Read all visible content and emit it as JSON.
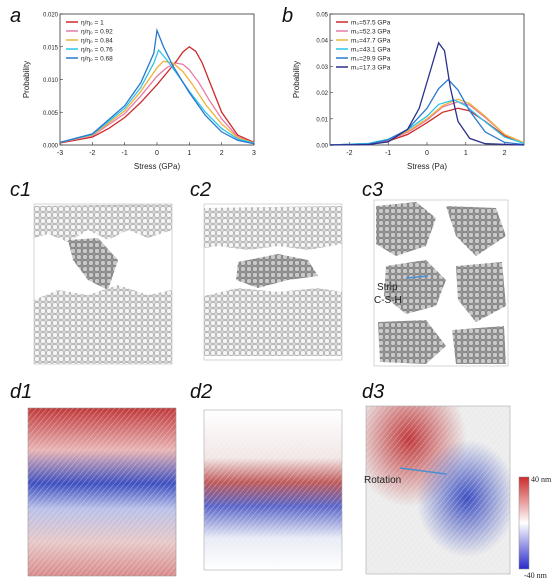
{
  "panels": {
    "a": "a",
    "b": "b",
    "c1": "c1",
    "c2": "c2",
    "c3": "c3",
    "d1": "d1",
    "d2": "d2",
    "d3": "d3"
  },
  "annotations": {
    "strip_line1": "Strip",
    "strip_line2": "C-S-H",
    "rotation": "Rotation"
  },
  "colorbar": {
    "max": "40 nm",
    "min": "-40 nm"
  },
  "colors": {
    "c1": "#cc2a2a",
    "c2": "#e97aa8",
    "c3": "#f0b23a",
    "c4": "#2ec4e8",
    "c5": "#2a78d0",
    "c6": "#2a2f8c"
  },
  "chart_data": [
    {
      "type": "line",
      "xlabel": "Stress (GPa)",
      "ylabel": "Probability",
      "xlim": [
        -3,
        3
      ],
      "ylim": [
        0,
        0.02
      ],
      "xticks": [
        "-3",
        "-2",
        "-1",
        "0",
        "1",
        "2",
        "3"
      ],
      "yticks": [
        "0.000",
        "0.005",
        "0.010",
        "0.015",
        "0.020"
      ],
      "legend_position": "top-left",
      "series": [
        {
          "name": "η/η₀ = 1",
          "color": "#cc2a2a",
          "x": [
            -3,
            -2,
            -1.5,
            -1,
            -0.5,
            0,
            0.3,
            0.6,
            0.8,
            1.0,
            1.2,
            1.4,
            1.6,
            2,
            2.5,
            3
          ],
          "y": [
            0.0003,
            0.0012,
            0.0025,
            0.0042,
            0.0065,
            0.0092,
            0.011,
            0.0128,
            0.0142,
            0.015,
            0.0143,
            0.0125,
            0.01,
            0.005,
            0.0015,
            0.0004
          ]
        },
        {
          "name": "η/η₀ = 0.92",
          "color": "#e97aa8",
          "x": [
            -3,
            -2,
            -1,
            -0.5,
            0,
            0.3,
            0.6,
            0.8,
            1.0,
            1.3,
            1.6,
            2,
            2.5,
            3
          ],
          "y": [
            0.0004,
            0.0014,
            0.0048,
            0.0075,
            0.0105,
            0.0118,
            0.0125,
            0.0123,
            0.0115,
            0.0095,
            0.007,
            0.004,
            0.0012,
            0.0003
          ]
        },
        {
          "name": "η/η₀ = 0.84",
          "color": "#f0b23a",
          "x": [
            -3,
            -2,
            -1,
            -0.5,
            0,
            0.2,
            0.5,
            0.8,
            1.1,
            1.5,
            2,
            2.5,
            3
          ],
          "y": [
            0.0004,
            0.0015,
            0.0052,
            0.0082,
            0.0118,
            0.0128,
            0.0125,
            0.0112,
            0.0092,
            0.0062,
            0.0032,
            0.0011,
            0.0003
          ]
        },
        {
          "name": "η/η₀ = 0.76",
          "color": "#2ec4e8",
          "x": [
            -3,
            -2,
            -1,
            -0.5,
            -0.1,
            0.05,
            0.3,
            0.6,
            1.0,
            1.5,
            2,
            2.5,
            3
          ],
          "y": [
            0.0004,
            0.0016,
            0.0056,
            0.0088,
            0.0125,
            0.0145,
            0.013,
            0.011,
            0.0082,
            0.005,
            0.0025,
            0.0009,
            0.0003
          ]
        },
        {
          "name": "η/η₀ = 0.68",
          "color": "#2a78d0",
          "x": [
            -3,
            -2,
            -1,
            -0.5,
            -0.1,
            0.0,
            0.2,
            0.5,
            1.0,
            1.5,
            2,
            2.5,
            3
          ],
          "y": [
            0.0004,
            0.0017,
            0.006,
            0.0095,
            0.014,
            0.0175,
            0.015,
            0.012,
            0.008,
            0.0045,
            0.002,
            0.0007,
            0.0002
          ]
        }
      ]
    },
    {
      "type": "line",
      "xlabel": "Stress (Pa)",
      "ylabel": "Probability",
      "xlim": [
        -2.5,
        2.5
      ],
      "ylim": [
        0,
        0.05
      ],
      "xticks": [
        "-2",
        "-1",
        "0",
        "1",
        "2"
      ],
      "yticks": [
        "0.00",
        "0.01",
        "0.02",
        "0.03",
        "0.04",
        "0.05"
      ],
      "legend_position": "top-left",
      "series": [
        {
          "name": "m₀=57.5 GPa",
          "color": "#cc2a2a",
          "x": [
            -2.5,
            -1.5,
            -1,
            -0.5,
            0,
            0.4,
            0.8,
            1.1,
            1.5,
            2,
            2.5
          ],
          "y": [
            0,
            0.0005,
            0.0015,
            0.004,
            0.0085,
            0.0125,
            0.014,
            0.013,
            0.009,
            0.0035,
            0.0008
          ]
        },
        {
          "name": "m₀=52.3 GPa",
          "color": "#e97aa8",
          "x": [
            -2.5,
            -1.5,
            -1,
            -0.5,
            0,
            0.4,
            0.8,
            1.1,
            1.5,
            2,
            2.5
          ],
          "y": [
            0,
            0.0005,
            0.0018,
            0.0048,
            0.0095,
            0.0145,
            0.0165,
            0.0152,
            0.0105,
            0.004,
            0.0008
          ]
        },
        {
          "name": "m₀=47.7 GPa",
          "color": "#f0b23a",
          "x": [
            -2.5,
            -1.5,
            -1,
            -0.5,
            0,
            0.4,
            0.8,
            1.1,
            1.5,
            2,
            2.5
          ],
          "y": [
            0,
            0.0005,
            0.002,
            0.0052,
            0.01,
            0.015,
            0.0175,
            0.0158,
            0.011,
            0.004,
            0.0008
          ]
        },
        {
          "name": "m₀=43.1 GPa",
          "color": "#2ec4e8",
          "x": [
            -2.5,
            -1.5,
            -1,
            -0.5,
            0,
            0.3,
            0.7,
            1.0,
            1.4,
            2,
            2.5
          ],
          "y": [
            0,
            0.0006,
            0.0022,
            0.0058,
            0.011,
            0.0155,
            0.0172,
            0.015,
            0.01,
            0.003,
            0.0006
          ]
        },
        {
          "name": "m₀=29.9 GPa",
          "color": "#2a78d0",
          "x": [
            -2.5,
            -1.5,
            -1,
            -0.5,
            0,
            0.3,
            0.55,
            0.8,
            1.1,
            1.5,
            2,
            2.5
          ],
          "y": [
            0,
            0.0004,
            0.002,
            0.006,
            0.014,
            0.0215,
            0.025,
            0.021,
            0.013,
            0.005,
            0.001,
            0.0002
          ]
        },
        {
          "name": "m₀=17.3 GPa",
          "color": "#2a2f8c",
          "x": [
            -2.5,
            -1.5,
            -1,
            -0.5,
            -0.2,
            0.1,
            0.3,
            0.45,
            0.6,
            0.8,
            1.1,
            1.5,
            2.5
          ],
          "y": [
            0,
            0.0002,
            0.0012,
            0.006,
            0.014,
            0.029,
            0.039,
            0.036,
            0.022,
            0.009,
            0.0025,
            0.0005,
            0
          ]
        }
      ]
    }
  ]
}
